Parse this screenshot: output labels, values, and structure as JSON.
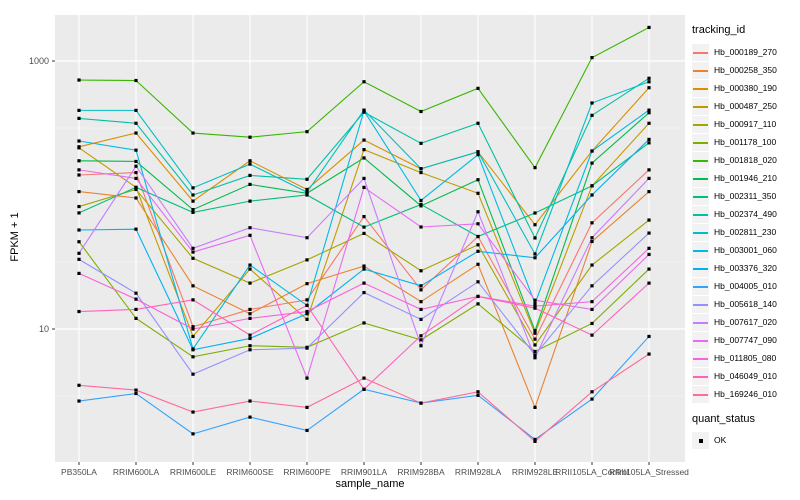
{
  "chart_data": {
    "type": "line",
    "title": "",
    "xlabel": "sample_name",
    "ylabel": "FPKM + 1",
    "y_scale": "log10",
    "y_ticks": [
      1000,
      10
    ],
    "y_tick_labels": [
      "1000",
      "10"
    ],
    "y_minor_ticks_log10": [
      0.5,
      1.5,
      2.5
    ],
    "ylim_log10": [
      0.0,
      3.35
    ],
    "panel_bg": "#ebebeb",
    "grid_color": "#ffffff",
    "point_color": "#000000",
    "tick_label_color": "#4d4d4d",
    "legend_position": "right",
    "grid": true,
    "categories": [
      "PB350LA",
      "RRIM600LA",
      "RRIM600LE",
      "RRIM600SE",
      "RRIM600PE",
      "RRIM901LA",
      "RRIM928BA",
      "RRIM928LA",
      "RRIM928LE",
      "RRII105LA_Control",
      "RRII105LA_Stressed"
    ],
    "legend": {
      "title": "tracking_id"
    },
    "legend2": {
      "title": "quant_status",
      "items": [
        {
          "label": "OK",
          "marker": "black-square"
        }
      ]
    },
    "series": [
      {
        "name": "Hb_000189_270",
        "color": "#F8766D",
        "values": [
          141,
          147,
          10.4,
          14,
          16.5,
          69,
          19.6,
          49,
          8.4,
          62,
          154
        ]
      },
      {
        "name": "Hb_000258_350",
        "color": "#EA8331",
        "values": [
          106,
          95,
          21,
          13,
          21.8,
          29.5,
          16,
          30.4,
          2.6,
          45,
          106
        ]
      },
      {
        "name": "Hb_000380_190",
        "color": "#D89000",
        "values": [
          229,
          290,
          90,
          180,
          110,
          257,
          157,
          210,
          60,
          213,
          632
        ]
      },
      {
        "name": "Hb_000487_250",
        "color": "#C09B00",
        "values": [
          225,
          114,
          8.8,
          28,
          11.8,
          218,
          147,
          103,
          9.3,
          117,
          343
        ]
      },
      {
        "name": "Hb_000917_110",
        "color": "#A3A500",
        "values": [
          82,
          110,
          33.7,
          22,
          32.8,
          51.7,
          27.2,
          42.5,
          7.6,
          30,
          65
        ]
      },
      {
        "name": "Hb_001178_100",
        "color": "#7CAE00",
        "values": [
          44.8,
          12,
          6.2,
          7.5,
          7.3,
          11.1,
          8.3,
          15.4,
          6.8,
          11,
          28
        ]
      },
      {
        "name": "Hb_001818_020",
        "color": "#39B600",
        "values": [
          721,
          715,
          290,
          270,
          297,
          700,
          420,
          625,
          160,
          1060,
          1780
        ]
      },
      {
        "name": "Hb_001946_210",
        "color": "#00BB4E",
        "values": [
          180,
          178,
          77.8,
          120,
          103,
          189,
          83,
          130,
          9.7,
          173,
          411
        ]
      },
      {
        "name": "Hb_002311_350",
        "color": "#00BF7D",
        "values": [
          73.5,
          114,
          74.2,
          90,
          100,
          57.6,
          85,
          49,
          73.4,
          117,
          245
        ]
      },
      {
        "name": "Hb_002374_490",
        "color": "#00C1A3",
        "values": [
          373,
          343,
          100,
          140,
          131,
          415,
          243,
          343,
          47.8,
          393,
          743
        ]
      },
      {
        "name": "Hb_002811_230",
        "color": "#00BFC4",
        "values": [
          428,
          428,
          113,
          170,
          105,
          430,
          157,
          210,
          36.3,
          486,
          700
        ]
      },
      {
        "name": "Hb_003001_060",
        "color": "#00BAE0",
        "values": [
          253,
          216,
          7.1,
          30,
          15,
          425,
          91,
          200,
          15.5,
          213,
          430
        ]
      },
      {
        "name": "Hb_003376_320",
        "color": "#00B0F6",
        "values": [
          54.8,
          55.6,
          7.0,
          8.5,
          13,
          28,
          21,
          38,
          34,
          100,
          260
        ]
      },
      {
        "name": "Hb_004005_010",
        "color": "#35A2FF",
        "values": [
          2.9,
          3.3,
          1.65,
          2.2,
          1.75,
          3.55,
          2.8,
          3.2,
          1.5,
          3.0,
          8.8
        ]
      },
      {
        "name": "Hb_005618_140",
        "color": "#9590FF",
        "values": [
          33.1,
          18.5,
          4.6,
          7.0,
          7.2,
          18.7,
          11.8,
          22.5,
          6.4,
          21,
          52
        ]
      },
      {
        "name": "Hb_007617_020",
        "color": "#C77CFF",
        "values": [
          36.7,
          164,
          40,
          57,
          48,
          133,
          7.5,
          75,
          6.1,
          48,
          133
        ]
      },
      {
        "name": "Hb_007747_090",
        "color": "#E76BF3",
        "values": [
          154,
          133,
          37.5,
          50,
          4.3,
          114,
          57.7,
          61,
          16.4,
          14,
          36
        ]
      },
      {
        "name": "Hb_011805_080",
        "color": "#FA62DB",
        "values": [
          26,
          16.7,
          10,
          12,
          13.5,
          22,
          14,
          17.5,
          14.8,
          16,
          40
        ]
      },
      {
        "name": "Hb_046049_010",
        "color": "#FF62BC",
        "values": [
          13.5,
          14,
          16.5,
          9,
          15,
          3.55,
          8.9,
          17.5,
          14.3,
          9,
          22
        ]
      },
      {
        "name": "Hb_169246_010",
        "color": "#FF6A98",
        "values": [
          3.8,
          3.5,
          2.4,
          2.9,
          2.6,
          4.3,
          2.8,
          3.4,
          1.45,
          3.4,
          6.5
        ]
      }
    ]
  }
}
